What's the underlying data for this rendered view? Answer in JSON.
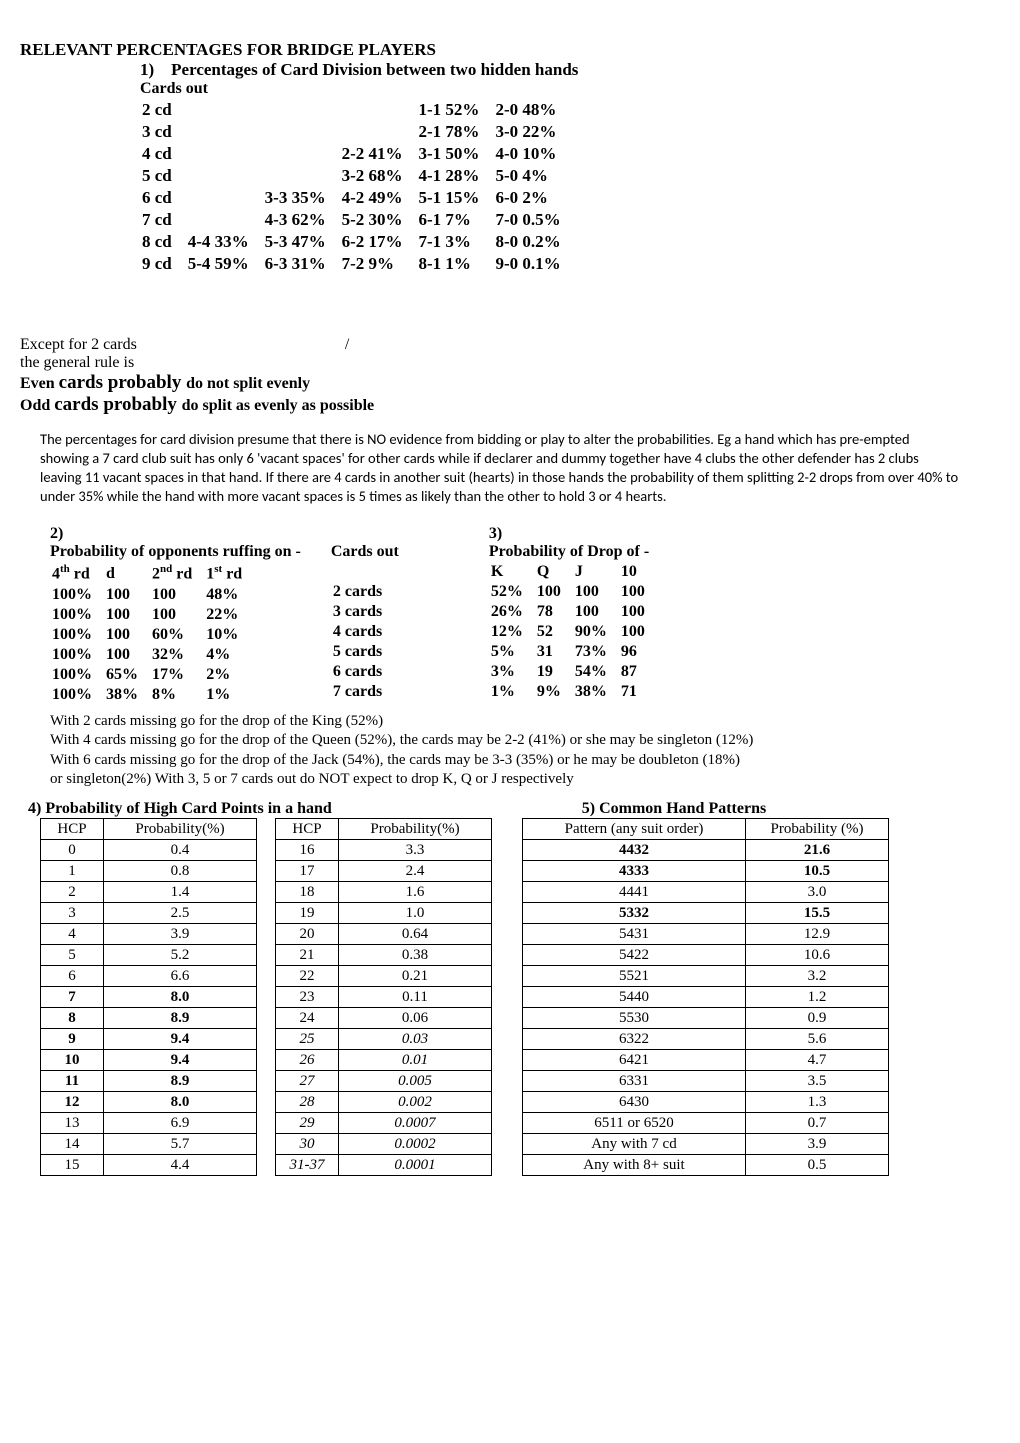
{
  "title": "RELEVANT PERCENTAGES FOR BRIDGE PLAYERS",
  "section1": {
    "heading": "1) Percentages of Card Division between two hidden hands",
    "subheading": "Cards out",
    "rows": [
      {
        "label": "2 cd",
        "cols": [
          "",
          "",
          "",
          "1-1 52%",
          "2-0 48%"
        ]
      },
      {
        "label": "3 cd",
        "cols": [
          "",
          "",
          "",
          "2-1 78%",
          "3-0 22%"
        ]
      },
      {
        "label": "4 cd",
        "cols": [
          "",
          "",
          "2-2 41%",
          "3-1 50%",
          "4-0 10%"
        ]
      },
      {
        "label": "5 cd",
        "cols": [
          "",
          "",
          "3-2 68%",
          "4-1 28%",
          "5-0 4%"
        ]
      },
      {
        "label": "6 cd",
        "cols": [
          "",
          "3-3 35%",
          "4-2 49%",
          "5-1 15%",
          "6-0 2%"
        ]
      },
      {
        "label": "7 cd",
        "cols": [
          "",
          "4-3 62%",
          "5-2 30%",
          "6-1 7%",
          "7-0 0.5%"
        ]
      },
      {
        "label": "8 cd",
        "cols": [
          "4-4 33%",
          "5-3 47%",
          "6-2 17%",
          "7-1 3%",
          "8-0 0.2%"
        ]
      },
      {
        "label": "9 cd",
        "cols": [
          "5-4 59%",
          "6-3 31%",
          "7-2 9%",
          "8-1 1%",
          "9-0 0.1%"
        ]
      }
    ]
  },
  "notes": {
    "line1": "Except for 2 cards",
    "slash": "/",
    "line2": "the general rule is",
    "line3a": "Even ",
    "line3b": "cards probably ",
    "line3c": "do not split evenly",
    "line4a": "Odd ",
    "line4b": "cards probably ",
    "line4c": "do split as evenly as possible"
  },
  "explain": "The percentages for card division presume that there is NO evidence from bidding or play to alter the probabilities. Eg a hand which has pre-empted showing a 7 card club suit has only 6 'vacant spaces' for other cards while if declarer and dummy together have 4 clubs the other defender has 2 clubs leaving 11 vacant spaces in that hand. If there are 4 cards in another suit (hearts) in those hands the probability of them splitting 2-2 drops from over 40% to under 35% while the hand with more vacant spaces is 5 times as likely than the other to hold 3 or 4 hearts.",
  "section2": {
    "heading": "2)",
    "title": "Probability of opponents ruffing on -",
    "cols": [
      "4",
      "d",
      "2",
      "1"
    ],
    "col_suffix_a": "th",
    "col_suffix_b": "nd",
    "col_suffix_c": "st",
    "col_word": " rd",
    "rows": [
      [
        "100%",
        "100",
        "100",
        "48%"
      ],
      [
        "100%",
        "100",
        "100",
        "22%"
      ],
      [
        "100%",
        "100",
        "60%",
        "10%"
      ],
      [
        "100%",
        "100",
        "32%",
        "4%"
      ],
      [
        "100%",
        "65%",
        "17%",
        "2%"
      ],
      [
        "100%",
        "38%",
        "8%",
        "1%"
      ]
    ]
  },
  "cards_out_label": "Cards out",
  "cards_out": [
    "2 cards",
    "3 cards",
    "4 cards",
    "5 cards",
    "6 cards",
    "7 cards"
  ],
  "section3": {
    "heading": "3)",
    "title": "Probability of Drop of -",
    "cols": [
      "K",
      "Q",
      "J",
      "10"
    ],
    "rows": [
      [
        "52%",
        "100",
        "100",
        "100"
      ],
      [
        "26%",
        "78",
        "100",
        "100"
      ],
      [
        "12%",
        "52",
        "90%",
        "100"
      ],
      [
        "5%",
        "31",
        "73%",
        "96"
      ],
      [
        "3%",
        "19",
        "54%",
        "87"
      ],
      [
        "1%",
        "9%",
        "38%",
        "71"
      ]
    ]
  },
  "sec23_notes": [
    "With 2 cards missing go for the drop of the King (52%)",
    "With 4 cards missing go for the drop of the Queen (52%), the cards may be 2-2 (41%) or she may be singleton (12%)",
    "With 6 cards missing go for the drop of the Jack (54%), the cards may be 3-3 (35%) or he may be doubleton (18%)",
    "or singleton(2%) With 3, 5 or 7 cards out do NOT expect to drop K, Q or J respectively"
  ],
  "section4": {
    "title": "4) Probability of High Card Points in a hand",
    "h1": "HCP",
    "h2": "Probability(%)",
    "left": [
      {
        "h": "0",
        "p": "0.4"
      },
      {
        "h": "1",
        "p": "0.8"
      },
      {
        "h": "2",
        "p": "1.4"
      },
      {
        "h": "3",
        "p": "2.5"
      },
      {
        "h": "4",
        "p": "3.9"
      },
      {
        "h": "5",
        "p": "5.2"
      },
      {
        "h": "6",
        "p": "6.6"
      },
      {
        "h": "7",
        "p": "8.0",
        "bold": true
      },
      {
        "h": "8",
        "p": "8.9",
        "bold": true
      },
      {
        "h": "9",
        "p": "9.4",
        "bold": true
      },
      {
        "h": "10",
        "p": "9.4",
        "bold": true
      },
      {
        "h": "11",
        "p": "8.9",
        "bold": true
      },
      {
        "h": "12",
        "p": "8.0",
        "bold": true
      },
      {
        "h": "13",
        "p": "6.9"
      },
      {
        "h": "14",
        "p": "5.7"
      },
      {
        "h": "15",
        "p": "4.4"
      }
    ],
    "right": [
      {
        "h": "16",
        "p": "3.3"
      },
      {
        "h": "17",
        "p": "2.4"
      },
      {
        "h": "18",
        "p": "1.6"
      },
      {
        "h": "19",
        "p": "1.0"
      },
      {
        "h": "20",
        "p": "0.64"
      },
      {
        "h": "21",
        "p": "0.38"
      },
      {
        "h": "22",
        "p": "0.21"
      },
      {
        "h": "23",
        "p": "0.11"
      },
      {
        "h": "24",
        "p": "0.06"
      },
      {
        "h": "25",
        "p": "0.03",
        "ital": true
      },
      {
        "h": "26",
        "p": "0.01",
        "ital": true
      },
      {
        "h": "27",
        "p": "0.005",
        "ital": true
      },
      {
        "h": "28",
        "p": "0.002",
        "ital": true
      },
      {
        "h": "29",
        "p": "0.0007",
        "ital": true
      },
      {
        "h": "30",
        "p": "0.0002",
        "ital": true
      },
      {
        "h": "31-37",
        "p": "0.0001",
        "ital": true
      }
    ]
  },
  "section5": {
    "title": "5) Common Hand Patterns",
    "h1": "Pattern (any suit order)",
    "h2": "Probability (%)",
    "rows": [
      {
        "pat": "4432",
        "prob": "21.6",
        "bold": true
      },
      {
        "pat": "4333",
        "prob": "10.5",
        "bold": true
      },
      {
        "pat": "4441",
        "prob": "3.0"
      },
      {
        "pat": "5332",
        "prob": "15.5",
        "bold": true
      },
      {
        "pat": "5431",
        "prob": "12.9"
      },
      {
        "pat": "5422",
        "prob": "10.6"
      },
      {
        "pat": "5521",
        "prob": "3.2"
      },
      {
        "pat": "5440",
        "prob": "1.2"
      },
      {
        "pat": "5530",
        "prob": "0.9"
      },
      {
        "pat": "6322",
        "prob": "5.6"
      },
      {
        "pat": "6421",
        "prob": "4.7"
      },
      {
        "pat": "6331",
        "prob": "3.5"
      },
      {
        "pat": "6430",
        "prob": "1.3"
      },
      {
        "pat": "6511 or 6520",
        "prob": "0.7"
      },
      {
        "pat": "Any with 7 cd",
        "prob": "3.9"
      },
      {
        "pat": "Any with 8+ suit",
        "prob": "0.5"
      }
    ]
  }
}
